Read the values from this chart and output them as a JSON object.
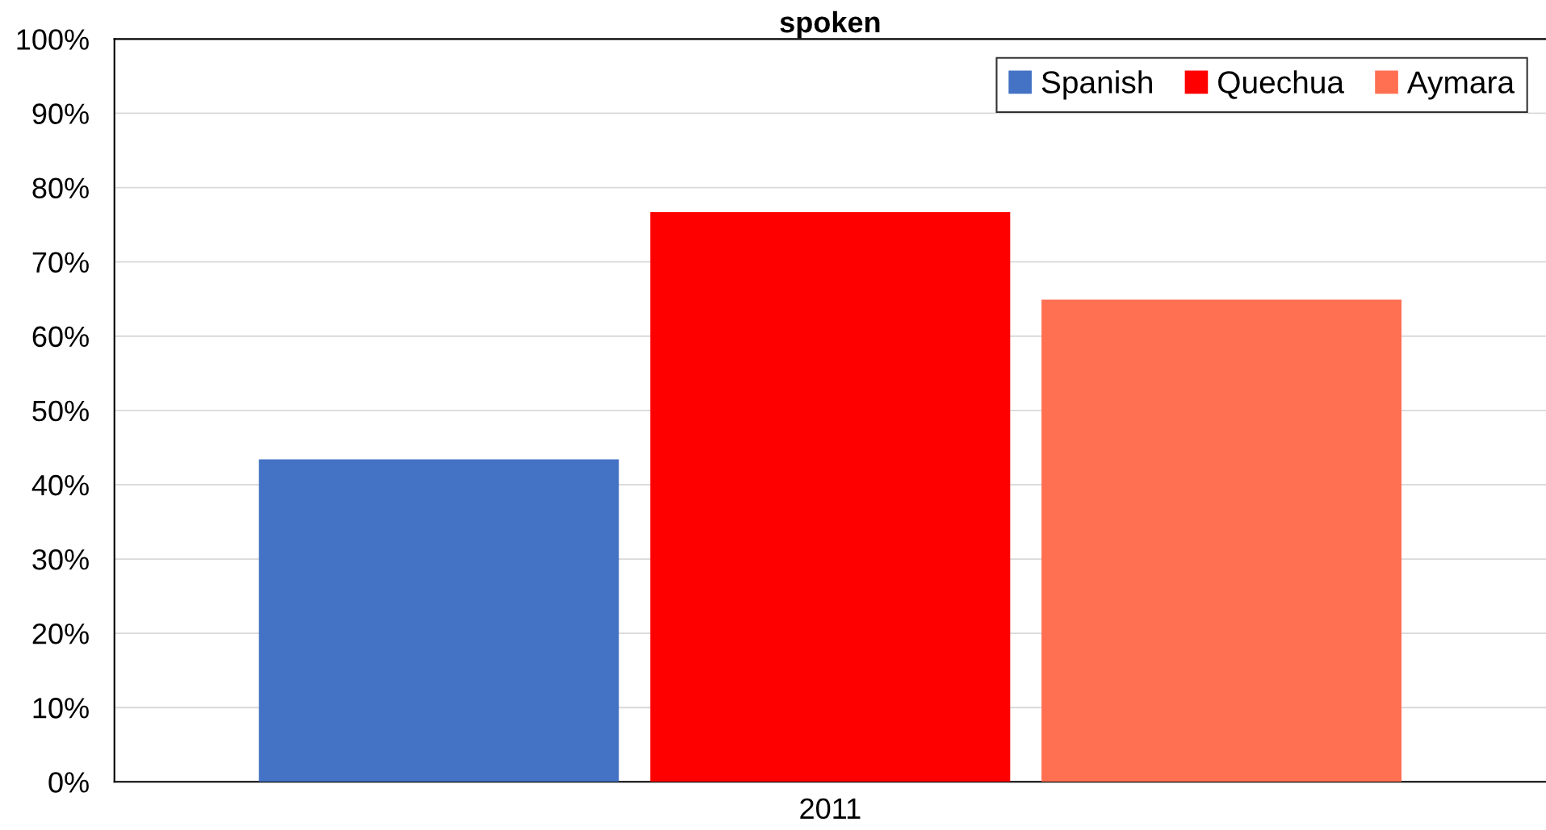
{
  "chart_data": {
    "type": "bar",
    "title": "spoken",
    "categories": [
      "2011"
    ],
    "series": [
      {
        "name": "Spanish",
        "color": "#4472c4",
        "values": [
          43.4
        ]
      },
      {
        "name": "Quechua",
        "color": "#ff0000",
        "values": [
          76.7
        ]
      },
      {
        "name": "Aymara",
        "color": "#ff6f52",
        "values": [
          64.9
        ]
      }
    ],
    "ylim": [
      0,
      100
    ],
    "yticks": [
      {
        "value": 0,
        "label": "0%"
      },
      {
        "value": 10,
        "label": "10%"
      },
      {
        "value": 20,
        "label": "20%"
      },
      {
        "value": 30,
        "label": "30%"
      },
      {
        "value": 40,
        "label": "40%"
      },
      {
        "value": 50,
        "label": "50%"
      },
      {
        "value": 60,
        "label": "60%"
      },
      {
        "value": 70,
        "label": "70%"
      },
      {
        "value": 80,
        "label": "80%"
      },
      {
        "value": 90,
        "label": "90%"
      },
      {
        "value": 100,
        "label": "100%"
      }
    ],
    "grid": "y",
    "legend": "top right"
  }
}
